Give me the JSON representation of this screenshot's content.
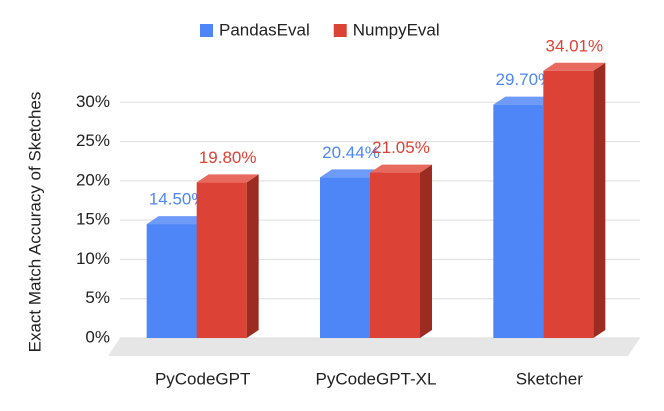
{
  "chart_data": {
    "type": "bar3d",
    "y_label": "Exact Match Accuracy of Sketches",
    "categories": [
      "PyCodeGPT",
      "PyCodeGPT-XL",
      "Sketcher"
    ],
    "series": [
      {
        "name": "PandasEval",
        "color": "#4f86f7",
        "side_color": "#3a64b8",
        "top_color": "#6f9bf8",
        "values": [
          14.5,
          20.44,
          29.7
        ],
        "value_labels": [
          "14.50%",
          "20.44%",
          "29.70%"
        ]
      },
      {
        "name": "NumpyEval",
        "color": "#dc4235",
        "side_color": "#9c2c22",
        "top_color": "#e86a5f",
        "values": [
          19.8,
          21.05,
          34.01
        ],
        "value_labels": [
          "19.80%",
          "21.05%",
          "34.01%"
        ]
      }
    ],
    "ylim": [
      0,
      35
    ],
    "yticks": [
      {
        "value": 0,
        "label": "0%"
      },
      {
        "value": 5,
        "label": "5%"
      },
      {
        "value": 10,
        "label": "10%"
      },
      {
        "value": 15,
        "label": "15%"
      },
      {
        "value": 20,
        "label": "20%"
      },
      {
        "value": 25,
        "label": "25%"
      },
      {
        "value": 30,
        "label": "30%"
      }
    ],
    "grid": true,
    "legend": "top"
  }
}
